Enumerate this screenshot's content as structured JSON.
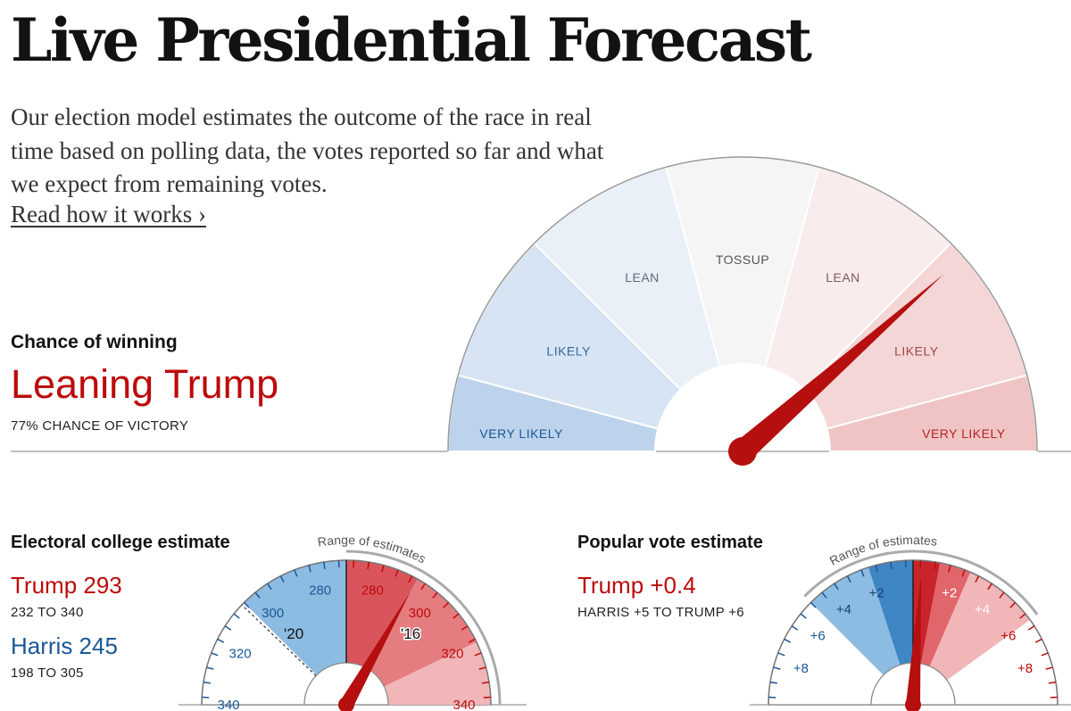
{
  "header": {
    "title": "Live Presidential Forecast",
    "intro": "Our election model estimates the outcome of the race in real time based on polling data, the votes reported so far and what we expect from remaining votes.",
    "link": "Read how it works ›"
  },
  "colors": {
    "trump_red": "#bd0a0a",
    "harris_blue": "#1a5796",
    "needle": "#b50f0f"
  },
  "chance": {
    "heading": "Chance of winning",
    "status": "Leaning Trump",
    "detail": "77% CHANCE OF VICTORY"
  },
  "electoral": {
    "heading": "Electoral college estimate",
    "trump": "Trump 293",
    "trump_range": "232 TO 340",
    "harris": "Harris 245",
    "harris_range": "198 TO 305"
  },
  "popular": {
    "heading": "Popular vote estimate",
    "leader": "Trump +0.4",
    "range": "HARRIS +5 TO TRUMP +6"
  },
  "chart_data": [
    {
      "type": "gauge",
      "name": "chance_of_winning",
      "categories": [
        "VERY LIKELY",
        "LIKELY",
        "LEAN",
        "TOSSUP",
        "LEAN",
        "LIKELY",
        "VERY LIKELY"
      ],
      "sides": [
        "harris",
        "harris",
        "harris",
        "neutral",
        "trump",
        "trump",
        "trump"
      ],
      "segment_colors": [
        "#bcd3eb",
        "#d6e4f3",
        "#e9f0f8",
        "#f5f5f5",
        "#f9ecec",
        "#f4d6d6",
        "#f0c4c4"
      ],
      "label_colors": [
        "#1a5796",
        "#3b6a99",
        "#5c6b7a",
        "#555555",
        "#7a5c5c",
        "#9c4646",
        "#b52323"
      ],
      "value": 0.77,
      "value_label": "77% CHANCE OF VICTORY"
    },
    {
      "type": "gauge",
      "name": "electoral_college",
      "range_label": "Range of estimates",
      "scale_min": 200,
      "scale_max": 340,
      "center": 270,
      "ticks_left": [
        "280",
        "300",
        "320",
        "340"
      ],
      "ticks_right": [
        "280",
        "300",
        "320",
        "340"
      ],
      "trump_estimate": 293,
      "trump_range": [
        232,
        340
      ],
      "harris_estimate": 245,
      "harris_range": [
        198,
        305
      ],
      "markers": [
        {
          "label": "'20",
          "party": "harris",
          "value": 306
        },
        {
          "label": "'16",
          "party": "trump",
          "value": 304
        }
      ]
    },
    {
      "type": "gauge",
      "name": "popular_vote",
      "range_label": "Range of estimates",
      "units": "percentage points",
      "scale_max": 10,
      "ticks_left": [
        "+2",
        "+4",
        "+6",
        "+8"
      ],
      "ticks_right": [
        "+2",
        "+4",
        "+6",
        "+8"
      ],
      "estimate": 0.4,
      "leader": "Trump",
      "range": [
        -5,
        6
      ]
    }
  ]
}
